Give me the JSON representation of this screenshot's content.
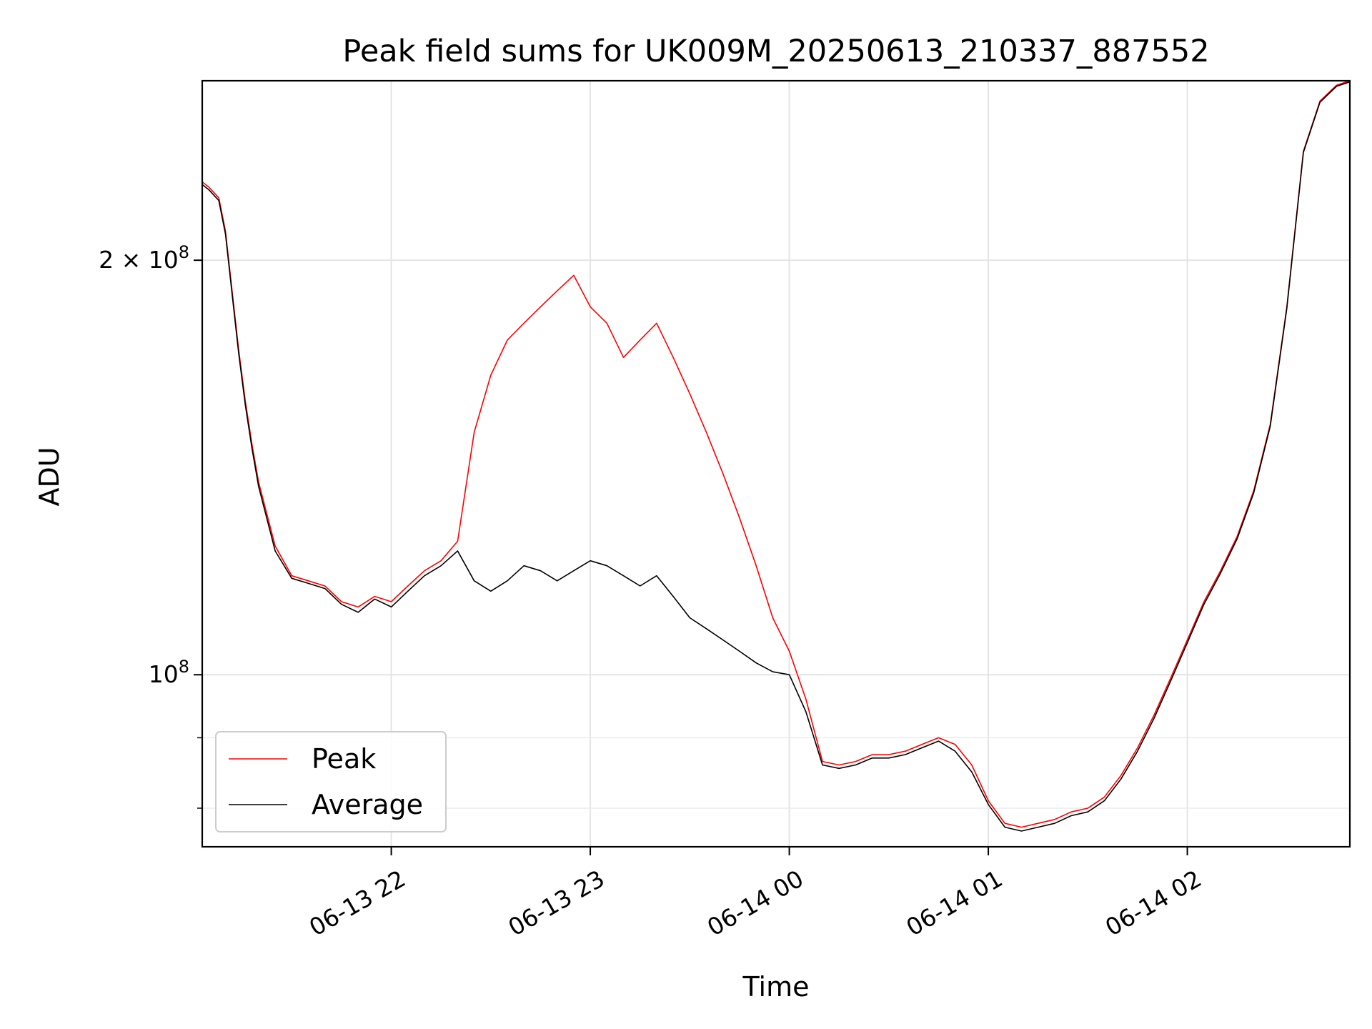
{
  "chart_data": {
    "type": "line",
    "title": "Peak field sums for UK009M_20250613_210337_887552",
    "xlabel": "Time",
    "ylabel": "ADU",
    "x_unit": "datetime",
    "xlim": [
      "2025-06-13 21:03",
      "2025-06-14 02:49"
    ],
    "ylim": [
      75000000,
      270000000
    ],
    "yscale": "log",
    "x_tick_labels": [
      "06-13 22",
      "06-13 23",
      "06-14 00",
      "06-14 01",
      "06-14 02"
    ],
    "x_tick_values": [
      "2025-06-13 22:00",
      "2025-06-13 23:00",
      "2025-06-14 00:00",
      "2025-06-14 01:00",
      "2025-06-14 02:00"
    ],
    "y_tick_labels": [
      {
        "value": 100000000,
        "base": "10",
        "exp": "8"
      },
      {
        "value": 200000000,
        "base": "2 × 10",
        "exp": "8"
      }
    ],
    "y_minor_ticks": [
      80000000,
      90000000
    ],
    "grid": true,
    "legend_position": "lower-left",
    "series": [
      {
        "name": "Peak",
        "color": "#ff0000",
        "x": [
          "2025-06-13 21:03",
          "2025-06-13 21:05",
          "2025-06-13 21:08",
          "2025-06-13 21:10",
          "2025-06-13 21:12",
          "2025-06-13 21:14",
          "2025-06-13 21:16",
          "2025-06-13 21:18",
          "2025-06-13 21:20",
          "2025-06-13 21:25",
          "2025-06-13 21:30",
          "2025-06-13 21:35",
          "2025-06-13 21:40",
          "2025-06-13 21:45",
          "2025-06-13 21:50",
          "2025-06-13 21:55",
          "2025-06-13 22:00",
          "2025-06-13 22:05",
          "2025-06-13 22:10",
          "2025-06-13 22:15",
          "2025-06-13 22:20",
          "2025-06-13 22:25",
          "2025-06-13 22:30",
          "2025-06-13 22:35",
          "2025-06-13 22:40",
          "2025-06-13 22:45",
          "2025-06-13 22:50",
          "2025-06-13 22:55",
          "2025-06-13 23:00",
          "2025-06-13 23:05",
          "2025-06-13 23:10",
          "2025-06-13 23:15",
          "2025-06-13 23:20",
          "2025-06-13 23:25",
          "2025-06-13 23:30",
          "2025-06-13 23:35",
          "2025-06-13 23:40",
          "2025-06-13 23:45",
          "2025-06-13 23:50",
          "2025-06-13 23:55",
          "2025-06-14 00:00",
          "2025-06-14 00:05",
          "2025-06-14 00:10",
          "2025-06-14 00:15",
          "2025-06-14 00:20",
          "2025-06-14 00:25",
          "2025-06-14 00:30",
          "2025-06-14 00:35",
          "2025-06-14 00:40",
          "2025-06-14 00:45",
          "2025-06-14 00:50",
          "2025-06-14 00:55",
          "2025-06-14 01:00",
          "2025-06-14 01:05",
          "2025-06-14 01:10",
          "2025-06-14 01:15",
          "2025-06-14 01:20",
          "2025-06-14 01:25",
          "2025-06-14 01:30",
          "2025-06-14 01:35",
          "2025-06-14 01:40",
          "2025-06-14 01:45",
          "2025-06-14 01:50",
          "2025-06-14 01:55",
          "2025-06-14 02:00",
          "2025-06-14 02:05",
          "2025-06-14 02:10",
          "2025-06-14 02:15",
          "2025-06-14 02:20",
          "2025-06-14 02:25",
          "2025-06-14 02:30",
          "2025-06-14 02:35",
          "2025-06-14 02:40",
          "2025-06-14 02:45",
          "2025-06-14 02:49"
        ],
        "y": [
          228000000,
          226000000,
          222000000,
          210000000,
          190000000,
          172000000,
          158000000,
          147000000,
          138000000,
          124000000,
          118000000,
          117000000,
          116000000,
          113000000,
          112000000,
          114000000,
          113000000,
          116000000,
          119000000,
          121000000,
          125000000,
          150000000,
          165000000,
          175000000,
          180000000,
          185000000,
          190000000,
          195000000,
          185000000,
          180000000,
          170000000,
          175000000,
          180000000,
          170000000,
          160000000,
          150000000,
          140000000,
          130000000,
          120000000,
          110000000,
          104000000,
          96000000,
          86500000,
          86000000,
          86500000,
          87500000,
          87500000,
          88000000,
          89000000,
          90000000,
          89000000,
          86000000,
          81000000,
          78000000,
          77500000,
          78000000,
          78500000,
          79500000,
          80000000,
          81500000,
          84500000,
          88500000,
          93500000,
          99500000,
          106000000,
          113000000,
          119000000,
          126000000,
          136000000,
          152000000,
          185000000,
          240000000,
          261000000,
          268000000,
          270000000
        ]
      },
      {
        "name": "Average",
        "color": "#000000",
        "x": [
          "2025-06-13 21:03",
          "2025-06-13 21:05",
          "2025-06-13 21:08",
          "2025-06-13 21:10",
          "2025-06-13 21:12",
          "2025-06-13 21:14",
          "2025-06-13 21:16",
          "2025-06-13 21:18",
          "2025-06-13 21:20",
          "2025-06-13 21:25",
          "2025-06-13 21:30",
          "2025-06-13 21:35",
          "2025-06-13 21:40",
          "2025-06-13 21:45",
          "2025-06-13 21:50",
          "2025-06-13 21:55",
          "2025-06-13 22:00",
          "2025-06-13 22:05",
          "2025-06-13 22:10",
          "2025-06-13 22:15",
          "2025-06-13 22:20",
          "2025-06-13 22:25",
          "2025-06-13 22:30",
          "2025-06-13 22:35",
          "2025-06-13 22:40",
          "2025-06-13 22:45",
          "2025-06-13 22:50",
          "2025-06-13 22:55",
          "2025-06-13 23:00",
          "2025-06-13 23:05",
          "2025-06-13 23:10",
          "2025-06-13 23:15",
          "2025-06-13 23:20",
          "2025-06-13 23:25",
          "2025-06-13 23:30",
          "2025-06-13 23:35",
          "2025-06-13 23:40",
          "2025-06-13 23:45",
          "2025-06-13 23:50",
          "2025-06-13 23:55",
          "2025-06-14 00:00",
          "2025-06-14 00:05",
          "2025-06-14 00:10",
          "2025-06-14 00:15",
          "2025-06-14 00:20",
          "2025-06-14 00:25",
          "2025-06-14 00:30",
          "2025-06-14 00:35",
          "2025-06-14 00:40",
          "2025-06-14 00:45",
          "2025-06-14 00:50",
          "2025-06-14 00:55",
          "2025-06-14 01:00",
          "2025-06-14 01:05",
          "2025-06-14 01:10",
          "2025-06-14 01:15",
          "2025-06-14 01:20",
          "2025-06-14 01:25",
          "2025-06-14 01:30",
          "2025-06-14 01:35",
          "2025-06-14 01:40",
          "2025-06-14 01:45",
          "2025-06-14 01:50",
          "2025-06-14 01:55",
          "2025-06-14 02:00",
          "2025-06-14 02:05",
          "2025-06-14 02:10",
          "2025-06-14 02:15",
          "2025-06-14 02:20",
          "2025-06-14 02:25",
          "2025-06-14 02:30",
          "2025-06-14 02:35",
          "2025-06-14 02:40",
          "2025-06-14 02:45",
          "2025-06-14 02:49"
        ],
        "y": [
          227000000,
          225000000,
          221000000,
          209000000,
          189000000,
          171000000,
          157000000,
          146000000,
          137000000,
          123000000,
          117500000,
          116500000,
          115500000,
          112500000,
          111000000,
          113500000,
          112000000,
          115000000,
          118000000,
          120000000,
          123000000,
          117000000,
          115000000,
          117000000,
          120000000,
          119000000,
          117000000,
          119000000,
          121000000,
          120000000,
          118000000,
          116000000,
          118000000,
          114000000,
          110000000,
          108000000,
          106000000,
          104000000,
          102000000,
          100500000,
          100000000,
          94000000,
          86000000,
          85500000,
          86000000,
          87000000,
          87000000,
          87500000,
          88500000,
          89500000,
          88000000,
          85000000,
          80500000,
          77500000,
          77000000,
          77500000,
          78000000,
          79000000,
          79500000,
          81000000,
          84000000,
          88000000,
          93000000,
          99000000,
          105500000,
          112500000,
          118500000,
          125500000,
          135500000,
          151500000,
          184500000,
          239500000,
          260500000,
          267500000,
          269500000
        ]
      }
    ]
  }
}
